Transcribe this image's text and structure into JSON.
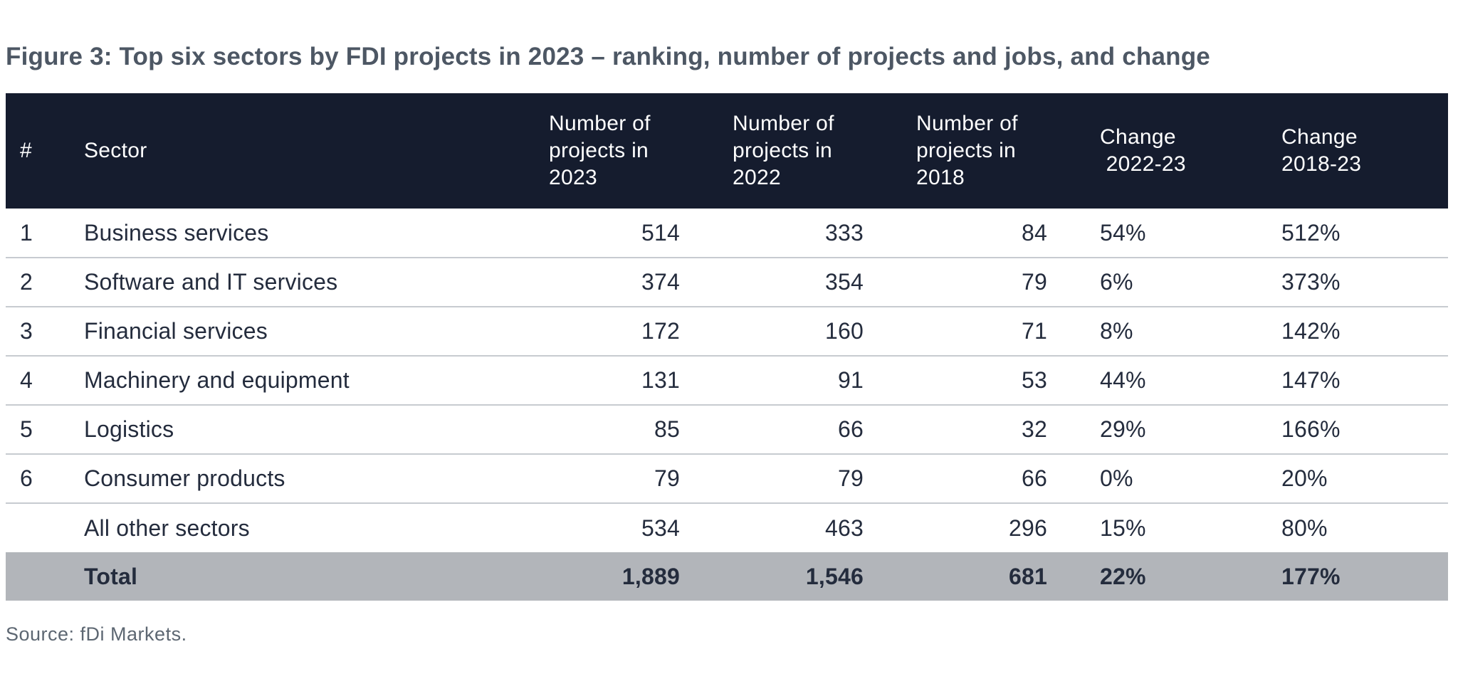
{
  "figure": {
    "title": "Figure 3: Top six sectors by FDI projects in 2023 – ranking, number of projects and jobs, and change",
    "source": "Source: fDi Markets."
  },
  "colors": {
    "header_bg": "#151c2e",
    "header_text": "#ffffff",
    "total_bg": "#b2b5ba",
    "body_text": "#242c3d",
    "title_text": "#4d5764",
    "source_text": "#5d6772",
    "separator": "#c7cbd0",
    "page_bg": "#ffffff"
  },
  "table": {
    "columns": [
      {
        "label": "#"
      },
      {
        "label": "Sector"
      },
      {
        "label": "Number of\nprojects in\n2023"
      },
      {
        "label": "Number of\nprojects in\n2022"
      },
      {
        "label": "Number of\nprojects in\n2018"
      },
      {
        "label": "Change\n 2022-23"
      },
      {
        "label": "Change\n2018-23"
      }
    ],
    "rows": [
      {
        "rank": "1",
        "sector": "Business services",
        "p2023": "514",
        "p2022": "333",
        "p2018": "84",
        "c2223": "54%",
        "c1823": "512%"
      },
      {
        "rank": "2",
        "sector": "Software and IT services",
        "p2023": "374",
        "p2022": "354",
        "p2018": "79",
        "c2223": "6%",
        "c1823": "373%"
      },
      {
        "rank": "3",
        "sector": "Financial services",
        "p2023": "172",
        "p2022": "160",
        "p2018": "71",
        "c2223": "8%",
        "c1823": "142%"
      },
      {
        "rank": "4",
        "sector": "Machinery and equipment",
        "p2023": "131",
        "p2022": "91",
        "p2018": "53",
        "c2223": "44%",
        "c1823": "147%"
      },
      {
        "rank": "5",
        "sector": "Logistics",
        "p2023": "85",
        "p2022": "66",
        "p2018": "32",
        "c2223": "29%",
        "c1823": "166%"
      },
      {
        "rank": "6",
        "sector": "Consumer products",
        "p2023": "79",
        "p2022": "79",
        "p2018": "66",
        "c2223": "0%",
        "c1823": "20%"
      },
      {
        "rank": "",
        "sector": "All other sectors",
        "p2023": "534",
        "p2022": "463",
        "p2018": "296",
        "c2223": "15%",
        "c1823": "80%"
      }
    ],
    "total": {
      "sector": "Total",
      "p2023": "1,889",
      "p2022": "1,546",
      "p2018": "681",
      "c2223": "22%",
      "c1823": "177%"
    }
  },
  "chart_data": {
    "type": "table",
    "title": "Figure 3: Top six sectors by FDI projects in 2023 – ranking, number of projects and jobs, and change",
    "columns": [
      "#",
      "Sector",
      "Number of projects in 2023",
      "Number of projects in 2022",
      "Number of projects in 2018",
      "Change 2022-23",
      "Change 2018-23"
    ],
    "rows": [
      [
        "1",
        "Business services",
        514,
        333,
        84,
        "54%",
        "512%"
      ],
      [
        "2",
        "Software and IT services",
        374,
        354,
        79,
        "6%",
        "373%"
      ],
      [
        "3",
        "Financial services",
        172,
        160,
        71,
        "8%",
        "142%"
      ],
      [
        "4",
        "Machinery and equipment",
        131,
        91,
        53,
        "44%",
        "147%"
      ],
      [
        "5",
        "Logistics",
        85,
        66,
        32,
        "29%",
        "166%"
      ],
      [
        "6",
        "Consumer products",
        79,
        79,
        66,
        "0%",
        "20%"
      ],
      [
        "",
        "All other sectors",
        534,
        463,
        296,
        "15%",
        "80%"
      ],
      [
        "",
        "Total",
        "1,889",
        "1,546",
        681,
        "22%",
        "177%"
      ]
    ],
    "source": "Source: fDi Markets."
  }
}
